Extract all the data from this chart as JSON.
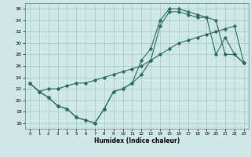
{
  "xlabel": "Humidex (Indice chaleur)",
  "bg_color": "#cde8e5",
  "grid_color": "#aacfcc",
  "line_color": "#2a6b5e",
  "xlim": [
    -0.5,
    23.5
  ],
  "ylim": [
    15,
    37
  ],
  "xticks": [
    0,
    1,
    2,
    3,
    4,
    5,
    6,
    7,
    8,
    9,
    10,
    11,
    12,
    13,
    14,
    15,
    16,
    17,
    18,
    19,
    20,
    21,
    22,
    23
  ],
  "yticks": [
    16,
    18,
    20,
    22,
    24,
    26,
    28,
    30,
    32,
    34,
    36
  ],
  "line1_x": [
    0,
    1,
    2,
    3,
    4,
    5,
    6,
    7,
    8,
    9,
    10,
    11,
    12,
    13,
    14,
    15,
    16,
    17,
    18,
    19,
    20,
    21,
    22,
    23
  ],
  "line1_y": [
    23,
    21.5,
    20.5,
    19,
    18.5,
    17,
    16.5,
    16,
    18.5,
    21.5,
    22,
    23,
    27,
    29,
    34,
    36,
    36,
    35.5,
    35,
    34.5,
    28,
    31,
    28,
    26.5
  ],
  "line2_x": [
    0,
    1,
    2,
    3,
    4,
    5,
    6,
    7,
    8,
    9,
    10,
    11,
    12,
    13,
    14,
    15,
    16,
    17,
    18,
    19,
    20,
    21,
    22,
    23
  ],
  "line2_y": [
    23,
    21.5,
    22,
    22,
    22.5,
    23,
    23,
    23.5,
    24,
    24.5,
    25,
    25.5,
    26,
    27,
    28,
    29,
    30,
    30.5,
    31,
    31.5,
    32,
    32.5,
    33,
    26.5
  ],
  "line3_x": [
    0,
    1,
    2,
    3,
    4,
    5,
    6,
    7,
    8,
    9,
    10,
    11,
    12,
    13,
    14,
    15,
    16,
    17,
    18,
    19,
    20,
    21,
    22,
    23
  ],
  "line3_y": [
    23,
    21.5,
    20.5,
    19,
    18.5,
    17,
    16.5,
    16,
    18.5,
    21.5,
    22,
    23,
    24.5,
    27,
    33,
    35.5,
    35.5,
    35,
    34.5,
    34.5,
    34,
    28,
    28,
    26.5
  ]
}
